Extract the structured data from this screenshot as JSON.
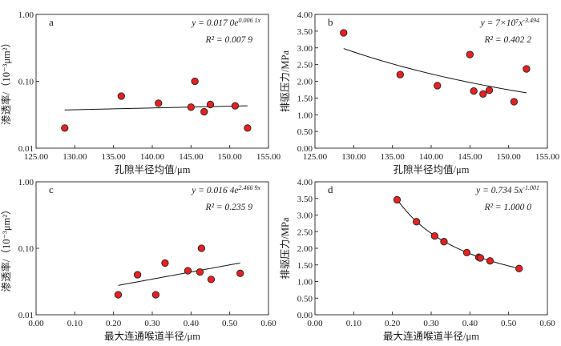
{
  "chart_data": [
    {
      "id": "a",
      "type": "scatter",
      "yscale": "log",
      "panel_label": "a",
      "xlabel": "孔隙半径均值/μm",
      "ylabel": "渗透率/（10⁻³μm²）",
      "xlim": [
        125,
        155
      ],
      "ylim": [
        0.01,
        1.0
      ],
      "xticks": [
        "125.00",
        "130.00",
        "135.00",
        "140.00",
        "145.00",
        "150.00",
        "155.00"
      ],
      "yticks": [
        "0.01",
        "0.10",
        "1.00"
      ],
      "x": [
        128.7,
        136.0,
        140.8,
        145.0,
        145.5,
        146.7,
        147.5,
        150.7,
        152.3
      ],
      "y": [
        0.02,
        0.06,
        0.047,
        0.041,
        0.1,
        0.035,
        0.045,
        0.043,
        0.02
      ],
      "fit": {
        "kind": "exp",
        "a": 0.017,
        "b": 0.0061
      },
      "equation": "y = 0.017 0e^0.006 1x",
      "r2": "R² = 0.007 9"
    },
    {
      "id": "b",
      "type": "scatter",
      "yscale": "linear",
      "panel_label": "b",
      "xlabel": "孔隙半径均值/μm",
      "ylabel": "排驱压力/MPa",
      "xlim": [
        125,
        155
      ],
      "ylim": [
        0,
        4
      ],
      "xticks": [
        "125.00",
        "130.00",
        "135.00",
        "140.00",
        "145.00",
        "150.00",
        "155.00"
      ],
      "yticks": [
        "0.00",
        "0.50",
        "1.00",
        "1.50",
        "2.00",
        "2.50",
        "3.00",
        "3.50",
        "4.00"
      ],
      "x": [
        128.7,
        136.0,
        140.8,
        145.0,
        145.5,
        146.7,
        147.5,
        150.7,
        152.3
      ],
      "y": [
        3.45,
        2.2,
        1.87,
        2.8,
        1.71,
        1.62,
        1.73,
        1.39,
        2.37
      ],
      "fit": {
        "kind": "power",
        "a": 70000000.0,
        "b": -3.494
      },
      "equation": "y = 7×10⁷x^-3.494",
      "r2": "R² = 0.402 2"
    },
    {
      "id": "c",
      "type": "scatter",
      "yscale": "log",
      "panel_label": "c",
      "xlabel": "最大连通喉道半径/μm",
      "ylabel": "渗透率/（10⁻³μm²）",
      "xlim": [
        0,
        0.6
      ],
      "ylim": [
        0.01,
        1.0
      ],
      "xticks": [
        "0.00",
        "0.10",
        "0.20",
        "0.30",
        "0.40",
        "0.50",
        "0.60"
      ],
      "yticks": [
        "0.01",
        "0.10",
        "1.00"
      ],
      "x": [
        0.212,
        0.262,
        0.309,
        0.333,
        0.392,
        0.423,
        0.427,
        0.452,
        0.527
      ],
      "y": [
        0.02,
        0.04,
        0.02,
        0.06,
        0.046,
        0.044,
        0.1,
        0.034,
        0.042
      ],
      "fit": {
        "kind": "exp",
        "a": 0.0164,
        "b": 2.4669
      },
      "equation": "y = 0.016 4e^2.466 9x",
      "r2": "R² = 0.235 9"
    },
    {
      "id": "d",
      "type": "scatter",
      "yscale": "linear",
      "panel_label": "d",
      "xlabel": "最大连通喉道半径/μm",
      "ylabel": "排驱压力/MPa",
      "xlim": [
        0,
        0.6
      ],
      "ylim": [
        0,
        4
      ],
      "xticks": [
        "0.00",
        "0.10",
        "0.20",
        "0.30",
        "0.40",
        "0.50",
        "0.60"
      ],
      "yticks": [
        "0.00",
        "0.50",
        "1.00",
        "1.50",
        "2.00",
        "2.50",
        "3.00",
        "3.50",
        "4.00"
      ],
      "x": [
        0.212,
        0.262,
        0.309,
        0.333,
        0.392,
        0.423,
        0.427,
        0.452,
        0.527
      ],
      "y": [
        3.46,
        2.8,
        2.37,
        2.2,
        1.87,
        1.73,
        1.71,
        1.62,
        1.39
      ],
      "fit": {
        "kind": "power",
        "a": 0.7345,
        "b": -1.001
      },
      "equation": "y = 0.734 5x^-1.001",
      "r2": "R² = 1.000 0"
    }
  ]
}
